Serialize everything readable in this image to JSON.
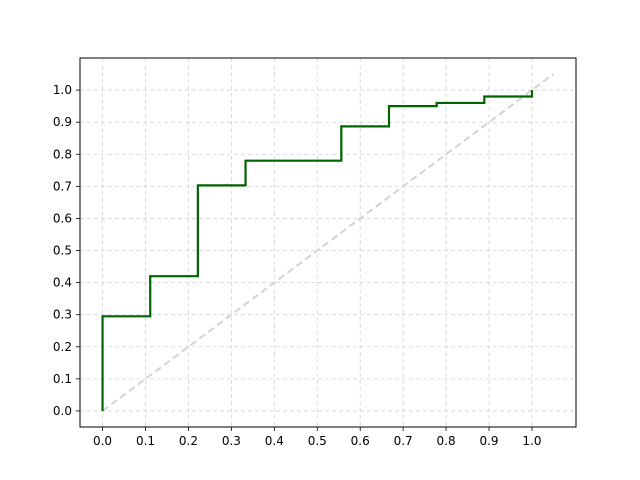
{
  "chart_data": {
    "type": "line",
    "title": "",
    "xlabel": "",
    "ylabel": "",
    "xlim": [
      -0.0525,
      1.1025
    ],
    "ylim": [
      -0.05,
      1.1
    ],
    "grid": true,
    "xticks": [
      0.0,
      0.1,
      0.2,
      0.3,
      0.4,
      0.5,
      0.6,
      0.7,
      0.8,
      0.9,
      1.0
    ],
    "yticks": [
      0.0,
      0.1,
      0.2,
      0.3,
      0.4,
      0.5,
      0.6,
      0.7,
      0.8,
      0.9,
      1.0
    ],
    "xtick_labels": [
      "0.0",
      "0.1",
      "0.2",
      "0.3",
      "0.4",
      "0.5",
      "0.6",
      "0.7",
      "0.8",
      "0.9",
      "1.0"
    ],
    "ytick_labels": [
      "0.0",
      "0.1",
      "0.2",
      "0.3",
      "0.4",
      "0.5",
      "0.6",
      "0.7",
      "0.8",
      "0.9",
      "1.0"
    ],
    "series": [
      {
        "style": "step",
        "color": "#006400",
        "x": [
          0.0,
          0.0,
          0.111,
          0.111,
          0.222,
          0.222,
          0.333,
          0.333,
          0.556,
          0.556,
          0.667,
          0.667,
          0.778,
          0.778,
          0.889,
          0.889,
          1.0,
          1.0
        ],
        "y": [
          0.0,
          0.295,
          0.295,
          0.42,
          0.42,
          0.703,
          0.703,
          0.78,
          0.78,
          0.887,
          0.887,
          0.95,
          0.95,
          0.96,
          0.96,
          0.98,
          0.98,
          1.0
        ]
      },
      {
        "style": "dashed",
        "color": "#d3d3d3",
        "x": [
          0.0,
          1.05
        ],
        "y": [
          0.0,
          1.05
        ]
      }
    ]
  }
}
